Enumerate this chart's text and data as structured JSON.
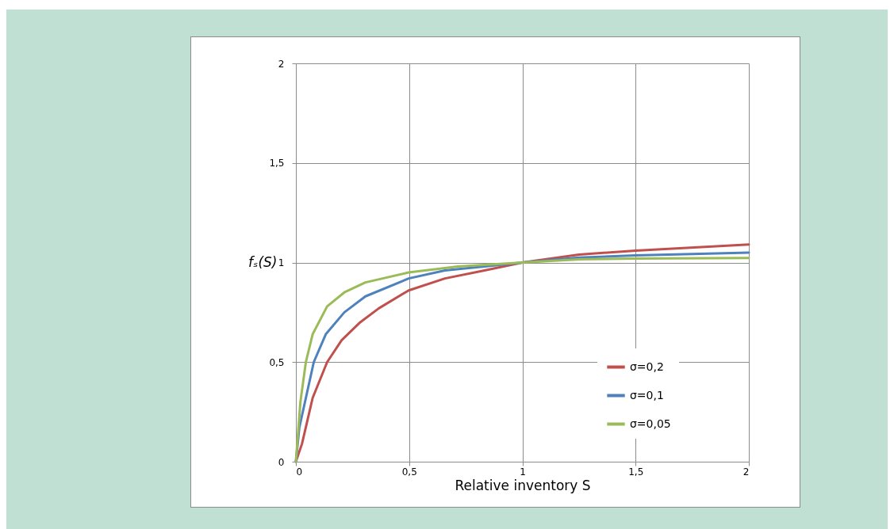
{
  "chart_data": {
    "type": "line",
    "xlabel": "Relative inventory S",
    "ylabel": "fₛ(S)",
    "xlim": [
      0,
      2
    ],
    "ylim": [
      0,
      2
    ],
    "xticks": [
      0,
      {
        "value": 0.5,
        "label": "0,5"
      },
      1,
      {
        "value": 1.5,
        "label": "1,5"
      },
      2
    ],
    "yticks": [
      0,
      {
        "value": 0.5,
        "label": "0,5"
      },
      1,
      {
        "value": 1.5,
        "label": "1,5"
      },
      2
    ],
    "grid": true,
    "legend": "bottom right",
    "line_style": "solid",
    "series": [
      {
        "name": "σ=0,2",
        "color": "#c0504d",
        "x": [
          0,
          0.027,
          0.074,
          0.138,
          0.202,
          0.284,
          0.366,
          0.498,
          0.658,
          0.833,
          1,
          1.25,
          1.5,
          2
        ],
        "values": [
          0,
          0.09,
          0.32,
          0.5,
          0.61,
          0.7,
          0.77,
          0.86,
          0.92,
          0.96,
          1,
          1.04,
          1.06,
          1.09
        ]
      },
      {
        "name": "σ=0,1",
        "color": "#4f81bd",
        "x": [
          0,
          0.015,
          0.079,
          0.132,
          0.214,
          0.307,
          0.498,
          0.658,
          0.833,
          1,
          1.25,
          1.5,
          2
        ],
        "values": [
          0,
          0.17,
          0.5,
          0.64,
          0.75,
          0.83,
          0.92,
          0.96,
          0.98,
          1,
          1.025,
          1.036,
          1.05
        ]
      },
      {
        "name": "σ=0,05",
        "color": "#9bbb59",
        "x": [
          0,
          0.02,
          0.044,
          0.074,
          0.138,
          0.214,
          0.307,
          0.498,
          0.716,
          1,
          1.25,
          1.5,
          2
        ],
        "values": [
          0,
          0.3,
          0.5,
          0.64,
          0.78,
          0.85,
          0.9,
          0.95,
          0.98,
          1,
          1.016,
          1.02,
          1.023
        ]
      }
    ]
  }
}
